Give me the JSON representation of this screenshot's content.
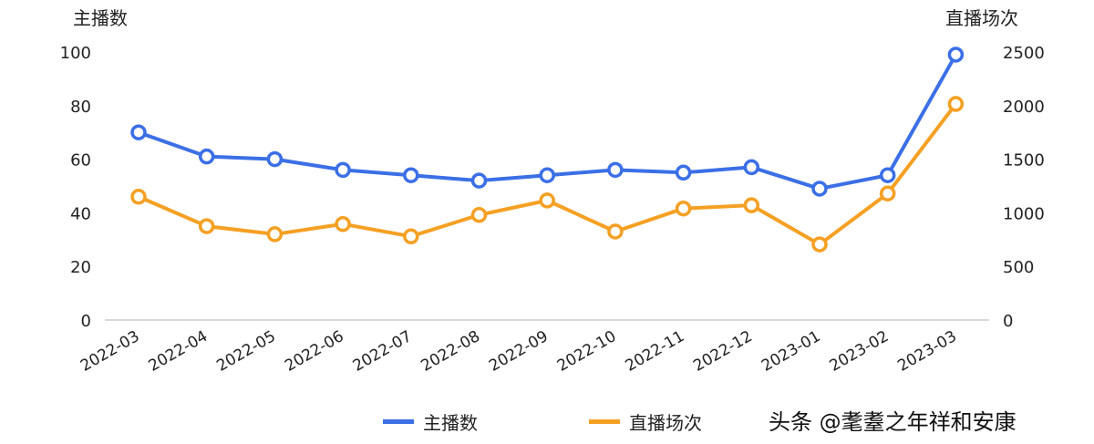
{
  "chart_data": {
    "type": "line",
    "title": "",
    "categories": [
      "2022-03",
      "2022-04",
      "2022-05",
      "2022-06",
      "2022-07",
      "2022-08",
      "2022-09",
      "2022-10",
      "2022-11",
      "2022-12",
      "2023-01",
      "2023-02",
      "2023-03"
    ],
    "series": [
      {
        "name": "主播数",
        "axis": "left",
        "color": "#3b6fe6",
        "values": [
          70,
          61,
          60,
          56,
          54,
          52,
          54,
          56,
          55,
          57,
          49,
          54,
          99
        ]
      },
      {
        "name": "直播场次",
        "axis": "right",
        "color": "#f5a023",
        "values": [
          1150,
          875,
          800,
          895,
          780,
          980,
          1115,
          825,
          1040,
          1070,
          705,
          1180,
          2015
        ]
      }
    ],
    "left_axis": {
      "label": "主播数",
      "ylim": [
        0,
        100
      ],
      "ticks": [
        0,
        20,
        40,
        60,
        80,
        100
      ]
    },
    "right_axis": {
      "label": "直播场次",
      "ylim": [
        0,
        2500
      ],
      "ticks": [
        0,
        500,
        1000,
        1500,
        2000,
        2500
      ]
    },
    "grid": false,
    "legend_position": "bottom"
  },
  "labels": {
    "left_axis_title": "主播数",
    "right_axis_title": "直播场次",
    "legend": [
      "主播数",
      "直播场次"
    ],
    "watermark": "头条 @耄耋之年祥和安康"
  }
}
